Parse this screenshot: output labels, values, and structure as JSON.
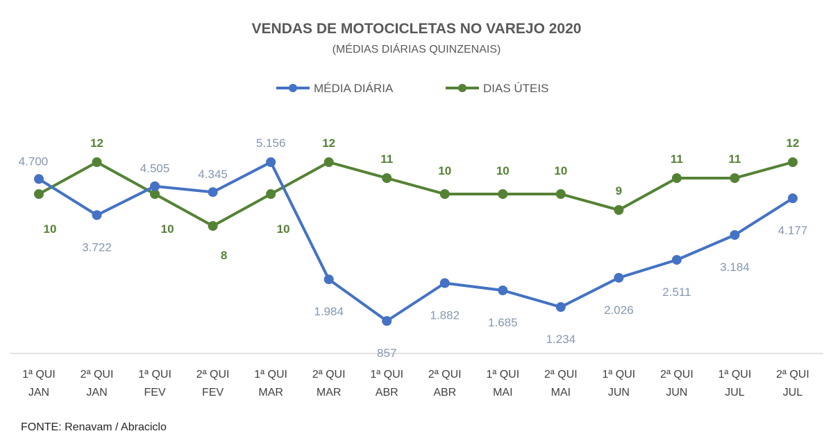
{
  "chart_data": {
    "type": "line",
    "title": "VENDAS DE MOTOCICLETAS NO VAREJO 2020",
    "subtitle": "(MÉDIAS DIÁRIAS QUINZENAIS)",
    "legend_position": "top",
    "categories": [
      [
        "1ª QUI",
        "JAN"
      ],
      [
        "2ª QUI",
        "JAN"
      ],
      [
        "1ª QUI",
        "FEV"
      ],
      [
        "2ª QUI",
        "FEV"
      ],
      [
        "1ª QUI",
        "MAR"
      ],
      [
        "2ª QUI",
        "MAR"
      ],
      [
        "1ª QUI",
        "ABR"
      ],
      [
        "2ª QUI",
        "ABR"
      ],
      [
        "1ª QUI",
        "MAI"
      ],
      [
        "2ª QUI",
        "MAI"
      ],
      [
        "1ª QUI",
        "JUN"
      ],
      [
        "2ª QUI",
        "JUN"
      ],
      [
        "1ª QUI",
        "JUL"
      ],
      [
        "2ª QUI",
        "JUL"
      ]
    ],
    "series": [
      {
        "name": "MÉDIA DIÁRIA",
        "color": "#4472c4",
        "values": [
          4700,
          3722,
          4505,
          4345,
          5156,
          1984,
          857,
          1882,
          1685,
          1234,
          2026,
          2511,
          3184,
          4177
        ],
        "labels": [
          "4.700",
          "3.722",
          "4.505",
          "4.345",
          "5.156",
          "1.984",
          "857",
          "1.882",
          "1.685",
          "1.234",
          "2.026",
          "2.511",
          "3.184",
          "4.177"
        ]
      },
      {
        "name": "DIAS ÚTEIS",
        "color": "#548235",
        "values": [
          10,
          12,
          10,
          8,
          10,
          12,
          11,
          10,
          10,
          10,
          9,
          11,
          11,
          12
        ],
        "labels": [
          "10",
          "12",
          "10",
          "8",
          "10",
          "12",
          "11",
          "10",
          "10",
          "10",
          "9",
          "11",
          "11",
          "12"
        ]
      }
    ],
    "grid": false,
    "source": "FONTE: Renavam / Abraciclo"
  }
}
